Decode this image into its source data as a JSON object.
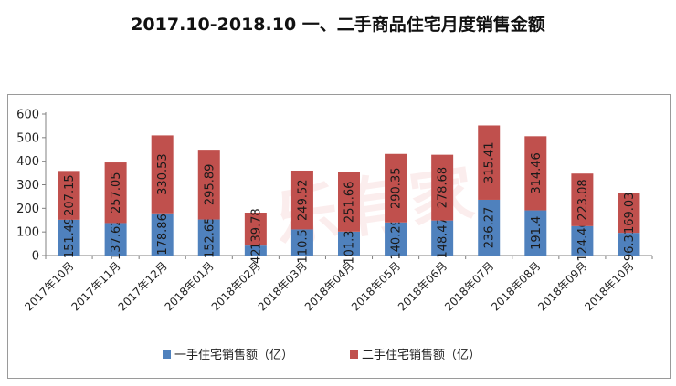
{
  "title": "2017.10-2018.10 一、二手商品住宅月度销售金额",
  "chart_data": {
    "type": "bar",
    "stacked": true,
    "categories": [
      "2017年10月",
      "2017年11月",
      "2017年12月",
      "2018年01月",
      "2018年02月",
      "2018年03月",
      "2018年04月",
      "2018年05月",
      "2018年06月",
      "2018年07月",
      "2018年08月",
      "2018年09月",
      "2018年10月"
    ],
    "series": [
      {
        "name": "一手住宅销售额（亿）",
        "color": "#4f81bd",
        "values": [
          151.49,
          137.62,
          178.86,
          152.65,
          42.1,
          110.55,
          101.34,
          140.29,
          148.47,
          236.27,
          191.4,
          124.46,
          96.31
        ],
        "labels": [
          "151.49",
          "137.62",
          "178.86",
          "152.65",
          "42.1",
          "110.55",
          "101.34",
          "140.29",
          "148.47",
          "236.27",
          "191.4",
          "124.46",
          "96.31"
        ]
      },
      {
        "name": "二手住宅销售额（亿）",
        "color": "#c0504d",
        "values": [
          207.15,
          257.05,
          330.53,
          295.89,
          139.78,
          249.52,
          251.66,
          290.35,
          278.68,
          315.41,
          314.46,
          223.08,
          169.03
        ],
        "labels": [
          "207.15",
          "257.05",
          "330.53",
          "295.89",
          "139.78",
          "249.52",
          "251.66",
          "290.35",
          "278.68",
          "315.41",
          "314.46",
          "223.08",
          "169.03"
        ]
      }
    ],
    "yticks": [
      "0",
      "100",
      "200",
      "300",
      "400",
      "500",
      "600"
    ],
    "ylim": [
      0,
      600
    ],
    "legend": "bottom",
    "grid": false
  }
}
